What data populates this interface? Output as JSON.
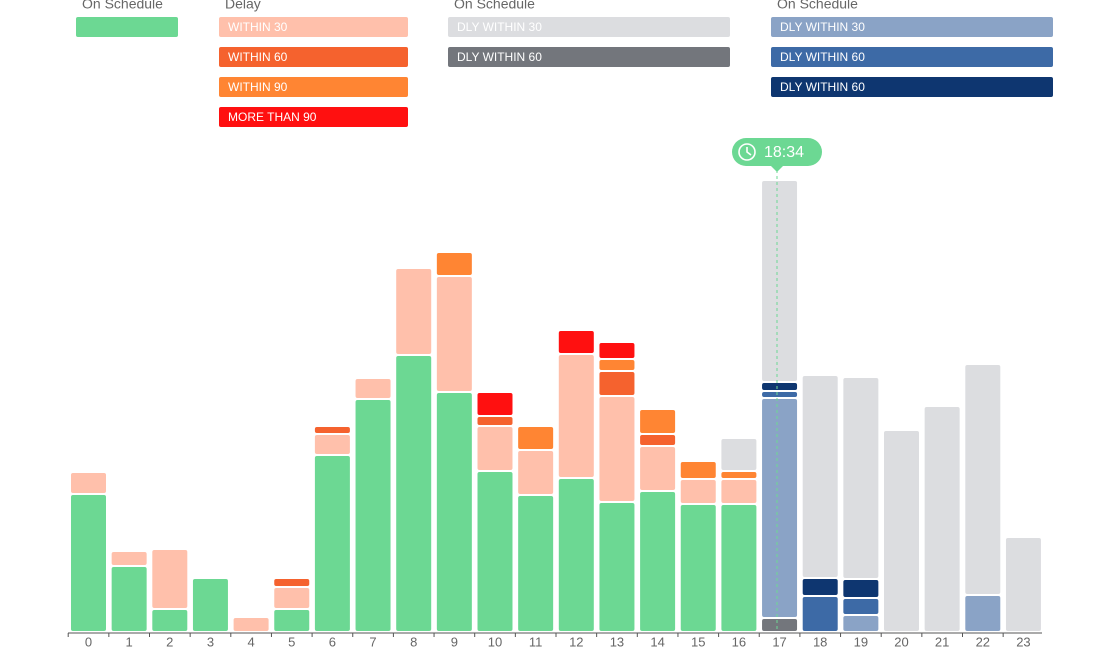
{
  "chart_data": {
    "type": "bar",
    "stacked": true,
    "legend_titles": [
      "On Schedule",
      "Delay",
      "On Schedule",
      "On Schedule"
    ],
    "current_time": "18:34",
    "categories": [
      "0",
      "1",
      "2",
      "3",
      "4",
      "5",
      "6",
      "7",
      "8",
      "9",
      "10",
      "11",
      "12",
      "13",
      "14",
      "15",
      "16",
      "17",
      "18",
      "19",
      "20",
      "21",
      "22",
      "23"
    ],
    "ylim": [
      0,
      460
    ],
    "series": [
      {
        "name": null,
        "color": "#6cd893",
        "values": [
          136,
          64,
          21,
          52,
          0,
          21,
          175,
          231,
          275,
          238,
          159,
          135,
          152,
          128,
          139,
          126,
          126,
          0,
          0,
          0,
          0,
          0,
          0,
          0
        ]
      },
      {
        "name": "WITHIN 30",
        "color": "#ffc0ab",
        "values": [
          20,
          13,
          58,
          0,
          13,
          20,
          19,
          19,
          85,
          114,
          43,
          43,
          122,
          104,
          43,
          23,
          23,
          0,
          0,
          0,
          0,
          0,
          0,
          0
        ]
      },
      {
        "name": "WITHIN 60",
        "color": "#f5622e",
        "values": [
          0,
          0,
          0,
          0,
          0,
          7,
          6,
          0,
          0,
          0,
          8,
          0,
          0,
          23,
          10,
          0,
          0,
          0,
          0,
          0,
          0,
          0,
          0,
          0
        ]
      },
      {
        "name": "WITHIN 90",
        "color": "#ff8533",
        "values": [
          0,
          0,
          0,
          0,
          0,
          0,
          0,
          0,
          0,
          22,
          0,
          22,
          0,
          10,
          23,
          16,
          6,
          0,
          0,
          0,
          0,
          0,
          0,
          0
        ]
      },
      {
        "name": "MORE THAN 90",
        "color": "#ff1010",
        "values": [
          0,
          0,
          0,
          0,
          0,
          0,
          0,
          0,
          0,
          0,
          22,
          0,
          22,
          15,
          0,
          0,
          0,
          0,
          0,
          0,
          0,
          0,
          0,
          0
        ]
      },
      {
        "name": "DLY WITHIN 30",
        "color": "#dcdde0",
        "values": [
          0,
          0,
          0,
          0,
          0,
          0,
          0,
          0,
          0,
          0,
          0,
          0,
          0,
          0,
          0,
          0,
          31,
          200,
          201,
          200,
          200,
          224,
          229,
          93
        ]
      },
      {
        "name": "DLY WITHIN 60",
        "color": "#73767c",
        "values": [
          0,
          0,
          0,
          0,
          0,
          0,
          0,
          0,
          0,
          0,
          0,
          0,
          0,
          0,
          0,
          0,
          0,
          12,
          0,
          0,
          0,
          0,
          0,
          0
        ]
      },
      {
        "name": "DLY WITHIN 30",
        "color": "#8aa3c6",
        "values": [
          0,
          0,
          0,
          0,
          0,
          0,
          0,
          0,
          0,
          0,
          0,
          0,
          0,
          0,
          0,
          0,
          0,
          218,
          0,
          15,
          0,
          0,
          35,
          0
        ]
      },
      {
        "name": "DLY WITHIN 60",
        "color": "#3d6aa6",
        "values": [
          0,
          0,
          0,
          0,
          0,
          0,
          0,
          0,
          0,
          0,
          0,
          0,
          0,
          0,
          0,
          0,
          0,
          5,
          34,
          15,
          0,
          0,
          0,
          0
        ]
      },
      {
        "name": "DLY WITHIN 60",
        "color": "#0e3670",
        "values": [
          0,
          0,
          0,
          0,
          0,
          0,
          0,
          0,
          0,
          0,
          0,
          0,
          0,
          0,
          0,
          0,
          0,
          7,
          16,
          17,
          0,
          0,
          0,
          0
        ]
      }
    ]
  }
}
